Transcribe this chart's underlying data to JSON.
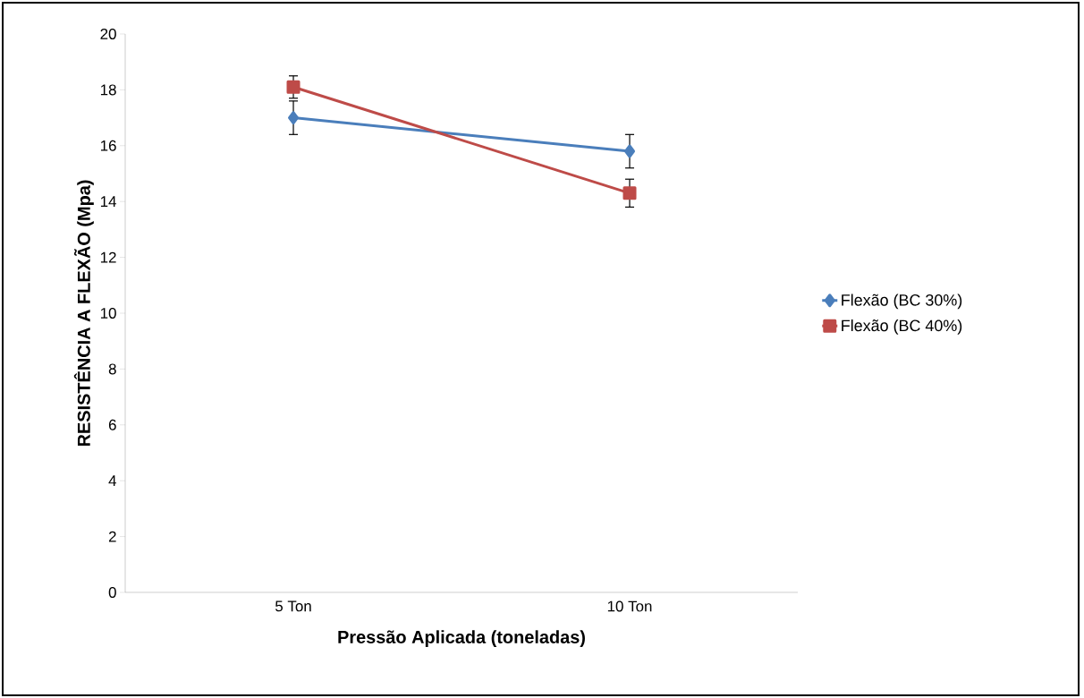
{
  "chart_data": {
    "type": "line",
    "xlabel": "Pressão Aplicada (toneladas)",
    "ylabel": "RESISTÊNCIA A FLEXÃO (Mpa)",
    "categories": [
      "5 Ton",
      "10 Ton"
    ],
    "series": [
      {
        "name": "Flexão (BC 30%)",
        "color": "#4a7ebb",
        "marker": "diamond",
        "values": [
          17.0,
          15.8
        ],
        "errors": [
          0.6,
          0.6
        ]
      },
      {
        "name": "Flexão (BC 40%)",
        "color": "#be4b48",
        "marker": "square",
        "values": [
          18.1,
          14.3
        ],
        "errors": [
          0.4,
          0.5
        ]
      }
    ],
    "ylim": [
      0,
      20
    ],
    "yticks": [
      0,
      2,
      4,
      6,
      8,
      10,
      12,
      14,
      16,
      18,
      20
    ],
    "grid": false,
    "legend": "right"
  }
}
